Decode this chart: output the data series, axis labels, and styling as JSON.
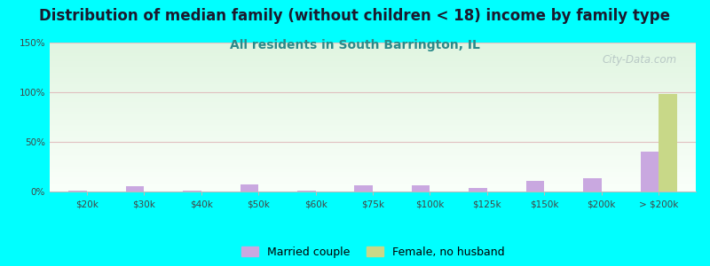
{
  "title": "Distribution of median family (without children < 18) income by family type",
  "subtitle": "All residents in South Barrington, IL",
  "background_color": "#00FFFF",
  "categories": [
    "$20k",
    "$30k",
    "$40k",
    "$50k",
    "$60k",
    "$75k",
    "$100k",
    "$125k",
    "$150k",
    "$200k",
    "> $200k"
  ],
  "married_couple": [
    1.0,
    5.5,
    1.0,
    7.0,
    0.5,
    6.5,
    6.5,
    3.5,
    10.5,
    13.0,
    40.0
  ],
  "female_no_husband": [
    0.0,
    0.0,
    0.0,
    0.0,
    0.0,
    0.0,
    0.0,
    0.0,
    0.0,
    0.0,
    98.0
  ],
  "married_color": "#c9a8e0",
  "female_color": "#c8d888",
  "ylim": [
    0,
    150
  ],
  "yticks": [
    0,
    50,
    100,
    150
  ],
  "ytick_labels": [
    "0%",
    "50%",
    "100%",
    "150%"
  ],
  "watermark": "City-Data.com",
  "title_fontsize": 12,
  "subtitle_fontsize": 10,
  "title_color": "#1a1a2e",
  "subtitle_color": "#2a8a8a"
}
